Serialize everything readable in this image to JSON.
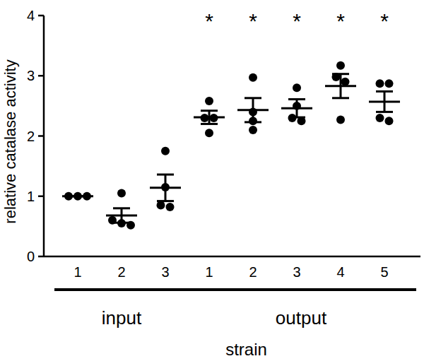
{
  "chart_data": {
    "type": "dot",
    "x_label": "strain",
    "y_label": "relative catalase activity",
    "categories": [
      "1",
      "2",
      "3",
      "1",
      "2",
      "3",
      "4",
      "5"
    ],
    "groups": [
      {
        "label": "input",
        "count": 3
      },
      {
        "label": "output",
        "count": 5
      }
    ],
    "points": [
      [
        1.0,
        1.0,
        1.0
      ],
      [
        1.05,
        0.6,
        0.55,
        0.52
      ],
      [
        1.75,
        1.15,
        0.85,
        0.82
      ],
      [
        2.58,
        2.3,
        2.3,
        2.05
      ],
      [
        2.97,
        2.4,
        2.25,
        2.1
      ],
      [
        2.8,
        2.5,
        2.3,
        2.25
      ],
      [
        3.17,
        2.98,
        2.9,
        2.27
      ],
      [
        2.87,
        2.87,
        2.3,
        2.25
      ]
    ],
    "values": [
      1.0,
      0.68,
      1.14,
      2.31,
      2.43,
      2.46,
      2.83,
      2.57
    ],
    "errors": [
      0.0,
      0.12,
      0.22,
      0.11,
      0.2,
      0.15,
      0.2,
      0.17
    ],
    "annotations": [
      null,
      null,
      null,
      "*",
      "*",
      "*",
      "*",
      "*"
    ],
    "color": "#000000",
    "marker": "circle",
    "ylim": [
      0,
      4
    ],
    "yticks": [
      0,
      1,
      2,
      3,
      4
    ],
    "grid": false
  }
}
